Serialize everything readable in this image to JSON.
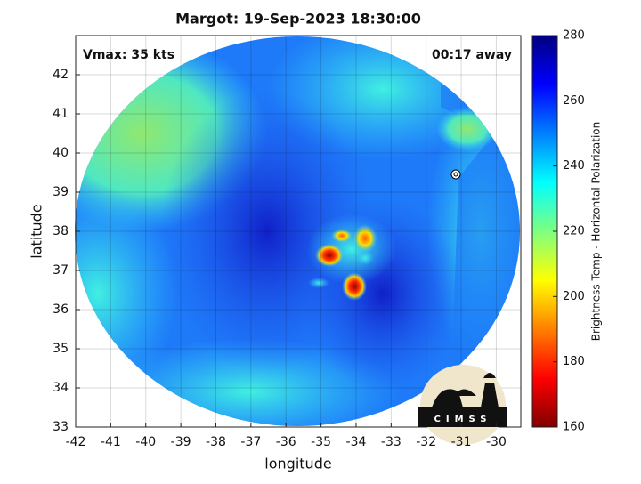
{
  "chart_data": {
    "type": "image",
    "title": "Margot: 19-Sep-2023 18:30:00",
    "x_label": "longitude",
    "y_label": "latitude",
    "annotations": [
      "Vmax: 35 kts",
      "00:17 away"
    ],
    "logo_text": "CIMSS",
    "xlim": [
      -42,
      -29.3
    ],
    "ylim": [
      33,
      43
    ],
    "xticks": [
      -42,
      -41,
      -40,
      -39,
      -38,
      -37,
      -36,
      -35,
      -34,
      -33,
      -32,
      -31,
      -30
    ],
    "yticks": [
      33,
      34,
      35,
      36,
      37,
      38,
      39,
      40,
      41,
      42
    ],
    "grid": true,
    "colorbar": {
      "label": "Brightness Temp - Horizontal Polarization",
      "lim": [
        160,
        280
      ],
      "ticks": [
        160,
        180,
        200,
        220,
        240,
        260,
        280
      ],
      "colormap": "jet"
    }
  }
}
